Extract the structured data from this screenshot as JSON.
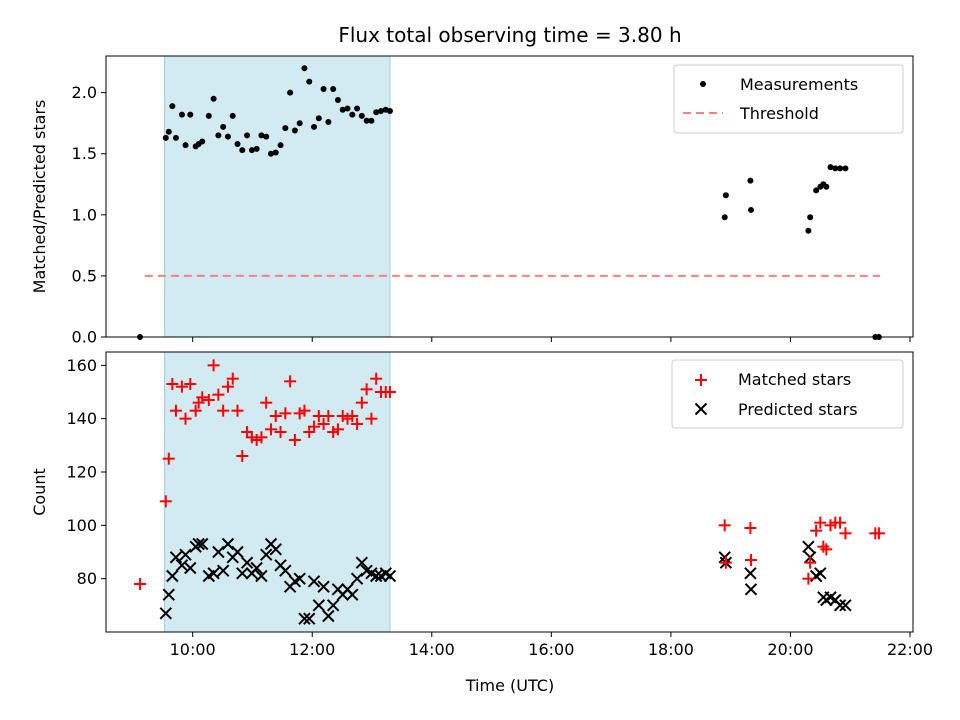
{
  "chart_data": {
    "type": "scatter",
    "title": "Flux total observing time = 3.80 h",
    "xlabel": "Time (UTC)",
    "x_ticks": [
      "10:00",
      "12:00",
      "14:00",
      "16:00",
      "18:00",
      "20:00",
      "22:00"
    ],
    "x_tick_hours": [
      10,
      12,
      14,
      16,
      18,
      20,
      22
    ],
    "xlim_hours": [
      8.55,
      22.05
    ],
    "shaded_interval_hours": [
      9.53,
      13.3
    ],
    "shade_color": "#add8e6",
    "top_panel": {
      "ylabel": "Matched/Predicted stars",
      "ylim": [
        0,
        2.3
      ],
      "y_ticks": [
        "0.0",
        "0.5",
        "1.0",
        "1.5",
        "2.0"
      ],
      "y_tick_values": [
        0,
        0.5,
        1.0,
        1.5,
        2.0
      ],
      "legend": [
        "Measurements",
        "Threshold"
      ],
      "legend_position": "upper right",
      "threshold": {
        "value": 0.5,
        "x_range_hours": [
          9.2,
          21.5
        ],
        "color": "#ff7f7f"
      },
      "measurements": {
        "color": "#000000",
        "x_hours": [
          9.12,
          9.55,
          9.6,
          9.66,
          9.72,
          9.82,
          9.88,
          9.96,
          10.05,
          10.1,
          10.16,
          10.27,
          10.35,
          10.43,
          10.51,
          10.59,
          10.67,
          10.75,
          10.83,
          10.91,
          10.99,
          11.07,
          11.15,
          11.23,
          11.31,
          11.39,
          11.47,
          11.55,
          11.63,
          11.71,
          11.79,
          11.87,
          11.95,
          12.03,
          12.11,
          12.19,
          12.27,
          12.35,
          12.43,
          12.51,
          12.59,
          12.67,
          12.75,
          12.83,
          12.91,
          12.99,
          13.07,
          13.15,
          13.23,
          13.3,
          18.9,
          18.92,
          19.33,
          19.34,
          20.3,
          20.33,
          20.43,
          20.5,
          20.55,
          20.6,
          20.67,
          20.75,
          20.83,
          20.92,
          21.42,
          21.48
        ],
        "y_values": [
          0.0,
          1.63,
          1.68,
          1.89,
          1.63,
          1.82,
          1.57,
          1.82,
          1.56,
          1.58,
          1.6,
          1.81,
          1.95,
          1.65,
          1.72,
          1.64,
          1.81,
          1.58,
          1.53,
          1.65,
          1.53,
          1.54,
          1.65,
          1.64,
          1.5,
          1.51,
          1.57,
          1.71,
          2.0,
          1.69,
          1.75,
          2.2,
          2.09,
          1.72,
          1.79,
          2.03,
          1.76,
          2.03,
          1.94,
          1.86,
          1.87,
          1.82,
          1.87,
          1.81,
          1.77,
          1.77,
          1.84,
          1.85,
          1.86,
          1.85,
          0.98,
          1.16,
          1.28,
          1.04,
          0.87,
          0.98,
          1.2,
          1.23,
          1.25,
          1.23,
          1.39,
          1.38,
          1.38,
          1.38,
          0.0,
          0.0
        ]
      }
    },
    "bottom_panel": {
      "ylabel": "Count",
      "ylim": [
        60,
        165
      ],
      "y_ticks": [
        "80",
        "100",
        "120",
        "140",
        "160"
      ],
      "y_tick_values": [
        80,
        100,
        120,
        140,
        160
      ],
      "legend": [
        "Matched stars",
        "Predicted stars"
      ],
      "legend_position": "upper right",
      "matched": {
        "color": "#ff0000",
        "marker": "+",
        "x_hours": [
          9.12,
          9.55,
          9.6,
          9.66,
          9.72,
          9.82,
          9.88,
          9.96,
          10.05,
          10.1,
          10.16,
          10.27,
          10.35,
          10.43,
          10.51,
          10.59,
          10.67,
          10.75,
          10.83,
          10.91,
          10.99,
          11.07,
          11.15,
          11.23,
          11.31,
          11.39,
          11.47,
          11.55,
          11.63,
          11.71,
          11.79,
          11.87,
          11.95,
          12.03,
          12.11,
          12.19,
          12.27,
          12.35,
          12.43,
          12.51,
          12.59,
          12.67,
          12.75,
          12.83,
          12.91,
          12.99,
          13.07,
          13.15,
          13.23,
          13.3,
          18.9,
          18.92,
          19.33,
          19.34,
          20.3,
          20.33,
          20.43,
          20.5,
          20.55,
          20.6,
          20.67,
          20.75,
          20.83,
          20.92,
          21.42,
          21.48
        ],
        "y_values": [
          78,
          109,
          125,
          153,
          143,
          152,
          140,
          153,
          143,
          146,
          148,
          147,
          160,
          149,
          143,
          152,
          155,
          143,
          126,
          135,
          133,
          132,
          133,
          146,
          136,
          141,
          135,
          142,
          154,
          132,
          142,
          143,
          135,
          137,
          141,
          138,
          141,
          135,
          136,
          141,
          140,
          141,
          138,
          146,
          151,
          140,
          155,
          150,
          150,
          150,
          100,
          86,
          99,
          87,
          80,
          86,
          98,
          101,
          92,
          91,
          100,
          101,
          101,
          97,
          97,
          97
        ]
      },
      "predicted": {
        "color": "#000000",
        "marker": "x",
        "x_hours": [
          9.55,
          9.6,
          9.66,
          9.72,
          9.82,
          9.88,
          9.96,
          10.05,
          10.1,
          10.16,
          10.27,
          10.35,
          10.43,
          10.51,
          10.59,
          10.67,
          10.75,
          10.83,
          10.91,
          10.99,
          11.07,
          11.15,
          11.23,
          11.31,
          11.39,
          11.47,
          11.55,
          11.63,
          11.71,
          11.79,
          11.87,
          11.95,
          12.03,
          12.11,
          12.19,
          12.27,
          12.35,
          12.43,
          12.51,
          12.59,
          12.67,
          12.75,
          12.83,
          12.91,
          12.99,
          13.07,
          13.15,
          13.23,
          13.3,
          18.9,
          18.92,
          19.33,
          19.34,
          20.3,
          20.33,
          20.43,
          20.5,
          20.55,
          20.6,
          20.67,
          20.75,
          20.83,
          20.92
        ],
        "y_values": [
          67,
          74,
          81,
          88,
          85,
          89,
          84,
          92,
          93,
          93,
          81,
          82,
          90,
          83,
          93,
          88,
          90,
          82,
          86,
          82,
          84,
          81,
          89,
          93,
          91,
          85,
          83,
          77,
          79,
          80,
          65,
          65,
          79,
          70,
          77,
          66,
          70,
          76,
          74,
          76,
          74,
          80,
          86,
          83,
          82,
          81,
          81,
          82,
          81,
          88,
          86,
          82,
          76,
          92,
          88,
          81,
          82,
          73,
          72,
          73,
          72,
          70,
          70
        ]
      }
    }
  }
}
